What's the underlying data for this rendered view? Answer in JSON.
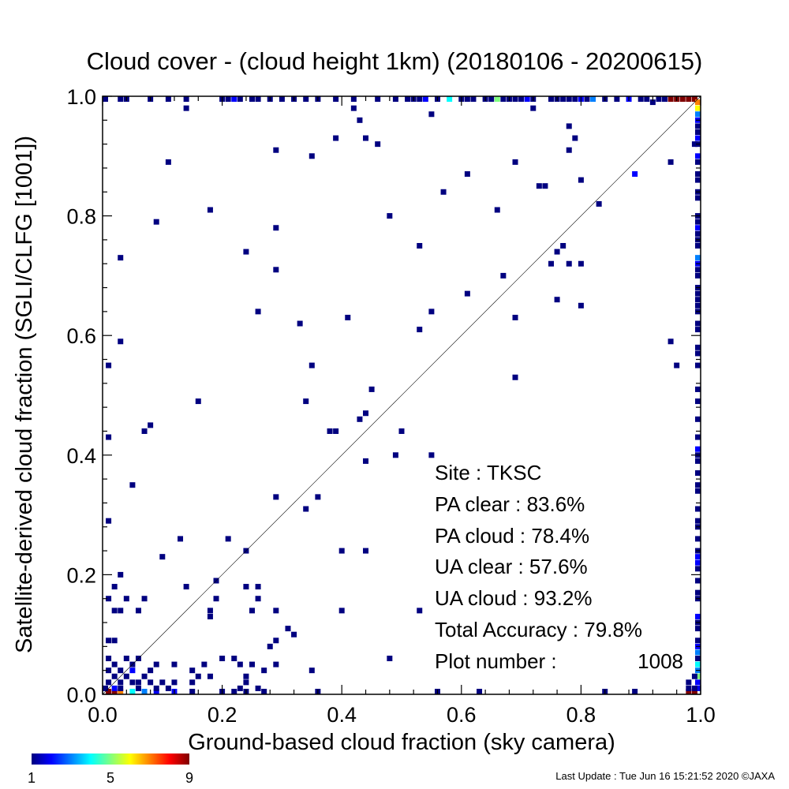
{
  "chart_data": {
    "type": "heatmap",
    "title": "Cloud cover - (cloud height 1km)  (20180106 - 20200615)",
    "xlabel": "Ground-based cloud fraction (sky camera)",
    "ylabel": "Satellite-derived cloud fraction (SGLI/CLFG [1001])",
    "xlim": [
      0.0,
      1.0
    ],
    "ylim": [
      0.0,
      1.0
    ],
    "x_ticks": [
      "0.0",
      "0.2",
      "0.4",
      "0.6",
      "0.8",
      "1.0"
    ],
    "y_ticks": [
      "0.0",
      "0.2",
      "0.4",
      "0.6",
      "0.8",
      "1.0"
    ],
    "reference_line": "y = x",
    "bin_size": 0.01,
    "colorbar": {
      "min": 1,
      "max": 9,
      "tick_labels": [
        "1",
        "5",
        "9"
      ],
      "colors": [
        "#000080",
        "#0000ff",
        "#0080ff",
        "#00ffff",
        "#80ff80",
        "#ffff00",
        "#ff8000",
        "#ff0000",
        "#800000"
      ]
    },
    "cells": [
      [
        0.01,
        0.0,
        9
      ],
      [
        0.02,
        0.0,
        9
      ],
      [
        0.03,
        0.0,
        7
      ],
      [
        0.05,
        0.0,
        4
      ],
      [
        0.07,
        0.0,
        3
      ],
      [
        0.09,
        0.0,
        2
      ],
      [
        0.12,
        0.0,
        2
      ],
      [
        0.15,
        0.0,
        1
      ],
      [
        0.2,
        0.0,
        1
      ],
      [
        0.22,
        0.0,
        1
      ],
      [
        0.24,
        0.0,
        1
      ],
      [
        0.27,
        0.0,
        1
      ],
      [
        0.36,
        0.0,
        1
      ],
      [
        0.56,
        0.0,
        1
      ],
      [
        0.63,
        0.0,
        1
      ],
      [
        0.84,
        0.0,
        1
      ],
      [
        0.89,
        0.0,
        1
      ],
      [
        0.98,
        0.0,
        9
      ],
      [
        0.99,
        0.0,
        9
      ],
      [
        0.0,
        0.01,
        1
      ],
      [
        0.02,
        0.01,
        2
      ],
      [
        0.03,
        0.01,
        1
      ],
      [
        0.06,
        0.01,
        1
      ],
      [
        0.09,
        0.01,
        1
      ],
      [
        0.11,
        0.01,
        1
      ],
      [
        0.23,
        0.01,
        1
      ],
      [
        0.26,
        0.01,
        1
      ],
      [
        0.01,
        0.02,
        1
      ],
      [
        0.03,
        0.02,
        1
      ],
      [
        0.05,
        0.02,
        1
      ],
      [
        0.06,
        0.02,
        1
      ],
      [
        0.08,
        0.02,
        1
      ],
      [
        0.1,
        0.02,
        1
      ],
      [
        0.12,
        0.02,
        1
      ],
      [
        0.15,
        0.02,
        1
      ],
      [
        0.24,
        0.02,
        1
      ],
      [
        0.02,
        0.03,
        1
      ],
      [
        0.04,
        0.03,
        1
      ],
      [
        0.07,
        0.03,
        1
      ],
      [
        0.16,
        0.03,
        1
      ],
      [
        0.18,
        0.03,
        1
      ],
      [
        0.24,
        0.03,
        1
      ],
      [
        0.01,
        0.04,
        1
      ],
      [
        0.03,
        0.04,
        1
      ],
      [
        0.05,
        0.04,
        2
      ],
      [
        0.08,
        0.04,
        1
      ],
      [
        0.15,
        0.04,
        1
      ],
      [
        0.27,
        0.04,
        1
      ],
      [
        0.35,
        0.04,
        1
      ],
      [
        0.02,
        0.05,
        1
      ],
      [
        0.05,
        0.05,
        1
      ],
      [
        0.09,
        0.05,
        1
      ],
      [
        0.12,
        0.05,
        1
      ],
      [
        0.17,
        0.05,
        1
      ],
      [
        0.23,
        0.05,
        1
      ],
      [
        0.25,
        0.05,
        1
      ],
      [
        0.29,
        0.05,
        1
      ],
      [
        0.01,
        0.06,
        1
      ],
      [
        0.04,
        0.06,
        1
      ],
      [
        0.06,
        0.06,
        1
      ],
      [
        0.2,
        0.06,
        1
      ],
      [
        0.22,
        0.06,
        1
      ],
      [
        0.48,
        0.06,
        1
      ],
      [
        0.28,
        0.08,
        1
      ],
      [
        0.01,
        0.09,
        1
      ],
      [
        0.02,
        0.09,
        1
      ],
      [
        0.29,
        0.09,
        1
      ],
      [
        0.32,
        0.1,
        1
      ],
      [
        0.31,
        0.11,
        1
      ],
      [
        0.02,
        0.14,
        1
      ],
      [
        0.03,
        0.14,
        1
      ],
      [
        0.06,
        0.14,
        1
      ],
      [
        0.18,
        0.13,
        1
      ],
      [
        0.18,
        0.14,
        1
      ],
      [
        0.25,
        0.14,
        1
      ],
      [
        0.29,
        0.14,
        1
      ],
      [
        0.4,
        0.14,
        1
      ],
      [
        0.53,
        0.14,
        1
      ],
      [
        0.01,
        0.16,
        1
      ],
      [
        0.04,
        0.16,
        1
      ],
      [
        0.07,
        0.16,
        1
      ],
      [
        0.19,
        0.16,
        1
      ],
      [
        0.26,
        0.16,
        1
      ],
      [
        0.02,
        0.18,
        1
      ],
      [
        0.14,
        0.18,
        1
      ],
      [
        0.24,
        0.18,
        1
      ],
      [
        0.26,
        0.18,
        1
      ],
      [
        0.03,
        0.2,
        1
      ],
      [
        0.19,
        0.19,
        1
      ],
      [
        0.1,
        0.23,
        1
      ],
      [
        0.24,
        0.24,
        1
      ],
      [
        0.4,
        0.24,
        1
      ],
      [
        0.44,
        0.24,
        1
      ],
      [
        0.13,
        0.26,
        1
      ],
      [
        0.21,
        0.26,
        1
      ],
      [
        0.01,
        0.29,
        1
      ],
      [
        0.34,
        0.31,
        1
      ],
      [
        0.29,
        0.33,
        1
      ],
      [
        0.36,
        0.33,
        1
      ],
      [
        0.05,
        0.35,
        1
      ],
      [
        0.55,
        0.4,
        1
      ],
      [
        0.49,
        0.4,
        1
      ],
      [
        0.44,
        0.39,
        1
      ],
      [
        0.01,
        0.43,
        1
      ],
      [
        0.07,
        0.44,
        1
      ],
      [
        0.38,
        0.44,
        1
      ],
      [
        0.39,
        0.44,
        1
      ],
      [
        0.5,
        0.44,
        1
      ],
      [
        0.08,
        0.45,
        1
      ],
      [
        0.43,
        0.46,
        1
      ],
      [
        0.44,
        0.47,
        1
      ],
      [
        0.16,
        0.49,
        1
      ],
      [
        0.34,
        0.49,
        1
      ],
      [
        0.45,
        0.51,
        1
      ],
      [
        0.01,
        0.55,
        1
      ],
      [
        0.35,
        0.55,
        1
      ],
      [
        0.69,
        0.53,
        1
      ],
      [
        0.96,
        0.55,
        1
      ],
      [
        0.03,
        0.59,
        1
      ],
      [
        0.53,
        0.61,
        1
      ],
      [
        0.33,
        0.62,
        1
      ],
      [
        0.41,
        0.63,
        1
      ],
      [
        0.55,
        0.64,
        1
      ],
      [
        0.26,
        0.64,
        1
      ],
      [
        0.69,
        0.63,
        1
      ],
      [
        0.95,
        0.59,
        1
      ],
      [
        0.61,
        0.67,
        1
      ],
      [
        0.76,
        0.66,
        1
      ],
      [
        0.8,
        0.65,
        1
      ],
      [
        0.67,
        0.7,
        1
      ],
      [
        0.29,
        0.71,
        1
      ],
      [
        0.75,
        0.72,
        1
      ],
      [
        0.78,
        0.72,
        1
      ],
      [
        0.8,
        0.72,
        1
      ],
      [
        0.03,
        0.73,
        1
      ],
      [
        0.24,
        0.74,
        1
      ],
      [
        0.76,
        0.74,
        1
      ],
      [
        0.77,
        0.75,
        1
      ],
      [
        0.53,
        0.75,
        1
      ],
      [
        0.29,
        0.78,
        1
      ],
      [
        0.09,
        0.79,
        1
      ],
      [
        0.48,
        0.8,
        1
      ],
      [
        0.18,
        0.81,
        1
      ],
      [
        0.66,
        0.81,
        1
      ],
      [
        0.83,
        0.82,
        1
      ],
      [
        0.57,
        0.84,
        1
      ],
      [
        0.73,
        0.85,
        1
      ],
      [
        0.74,
        0.85,
        1
      ],
      [
        0.8,
        0.86,
        1
      ],
      [
        0.61,
        0.87,
        1
      ],
      [
        0.89,
        0.87,
        2
      ],
      [
        0.11,
        0.89,
        1
      ],
      [
        0.69,
        0.89,
        1
      ],
      [
        0.95,
        0.89,
        1
      ],
      [
        0.35,
        0.9,
        1
      ],
      [
        0.29,
        0.91,
        1
      ],
      [
        0.78,
        0.91,
        1
      ],
      [
        0.39,
        0.93,
        1
      ],
      [
        0.44,
        0.93,
        1
      ],
      [
        0.46,
        0.92,
        1
      ],
      [
        0.79,
        0.93,
        1
      ],
      [
        0.78,
        0.95,
        1
      ],
      [
        0.43,
        0.96,
        1
      ],
      [
        0.55,
        0.97,
        1
      ],
      [
        0.14,
        0.98,
        1
      ],
      [
        0.42,
        0.98,
        1
      ],
      [
        0.72,
        0.98,
        1
      ],
      [
        0.92,
        0.99,
        1
      ],
      [
        0.0,
        1.0,
        1
      ],
      [
        0.03,
        1.0,
        1
      ],
      [
        0.04,
        1.0,
        1
      ],
      [
        0.08,
        1.0,
        1
      ],
      [
        0.11,
        1.0,
        1
      ],
      [
        0.14,
        1.0,
        1
      ],
      [
        0.2,
        1.0,
        1
      ],
      [
        0.21,
        1.0,
        1
      ],
      [
        0.22,
        1.0,
        2
      ],
      [
        0.23,
        1.0,
        1
      ],
      [
        0.25,
        1.0,
        1
      ],
      [
        0.26,
        1.0,
        1
      ],
      [
        0.28,
        1.0,
        1
      ],
      [
        0.3,
        1.0,
        1
      ],
      [
        0.32,
        1.0,
        1
      ],
      [
        0.34,
        1.0,
        1
      ],
      [
        0.36,
        1.0,
        1
      ],
      [
        0.39,
        1.0,
        1
      ],
      [
        0.42,
        1.0,
        1
      ],
      [
        0.46,
        1.0,
        1
      ],
      [
        0.49,
        1.0,
        1
      ],
      [
        0.51,
        1.0,
        1
      ],
      [
        0.52,
        1.0,
        1
      ],
      [
        0.53,
        1.0,
        1
      ],
      [
        0.54,
        1.0,
        2
      ],
      [
        0.56,
        1.0,
        1
      ],
      [
        0.58,
        1.0,
        4
      ],
      [
        0.6,
        1.0,
        1
      ],
      [
        0.61,
        1.0,
        1
      ],
      [
        0.62,
        1.0,
        1
      ],
      [
        0.64,
        1.0,
        1
      ],
      [
        0.65,
        1.0,
        1
      ],
      [
        0.66,
        1.0,
        5
      ],
      [
        0.67,
        1.0,
        1
      ],
      [
        0.68,
        1.0,
        1
      ],
      [
        0.69,
        1.0,
        1
      ],
      [
        0.7,
        1.0,
        1
      ],
      [
        0.71,
        1.0,
        2
      ],
      [
        0.72,
        1.0,
        1
      ],
      [
        0.75,
        1.0,
        1
      ],
      [
        0.76,
        1.0,
        1
      ],
      [
        0.77,
        1.0,
        1
      ],
      [
        0.78,
        1.0,
        1
      ],
      [
        0.79,
        1.0,
        1
      ],
      [
        0.8,
        1.0,
        2
      ],
      [
        0.81,
        1.0,
        1
      ],
      [
        0.82,
        1.0,
        3
      ],
      [
        0.84,
        1.0,
        1
      ],
      [
        0.86,
        1.0,
        1
      ],
      [
        0.88,
        1.0,
        2
      ],
      [
        0.9,
        1.0,
        1
      ],
      [
        0.91,
        1.0,
        1
      ],
      [
        0.93,
        1.0,
        1
      ],
      [
        0.94,
        1.0,
        1
      ],
      [
        0.95,
        1.0,
        9
      ],
      [
        0.96,
        1.0,
        9
      ],
      [
        0.97,
        1.0,
        9
      ],
      [
        0.98,
        1.0,
        9
      ],
      [
        0.99,
        1.0,
        9
      ],
      [
        1.0,
        0.99,
        7
      ],
      [
        1.0,
        0.98,
        6
      ],
      [
        1.0,
        0.97,
        3
      ],
      [
        1.0,
        0.96,
        2
      ],
      [
        1.0,
        0.95,
        1
      ],
      [
        1.0,
        0.94,
        1
      ],
      [
        1.0,
        0.93,
        2
      ],
      [
        1.0,
        0.92,
        1
      ],
      [
        0.99,
        0.92,
        1
      ],
      [
        1.0,
        0.9,
        2
      ],
      [
        1.0,
        0.89,
        1
      ],
      [
        1.0,
        0.87,
        1
      ],
      [
        1.0,
        0.86,
        1
      ],
      [
        1.0,
        0.84,
        1
      ],
      [
        1.0,
        0.83,
        1
      ],
      [
        1.0,
        0.8,
        1
      ],
      [
        1.0,
        0.79,
        1
      ],
      [
        1.0,
        0.78,
        2
      ],
      [
        1.0,
        0.77,
        1
      ],
      [
        1.0,
        0.76,
        1
      ],
      [
        1.0,
        0.75,
        1
      ],
      [
        1.0,
        0.73,
        3
      ],
      [
        1.0,
        0.72,
        2
      ],
      [
        1.0,
        0.71,
        1
      ],
      [
        1.0,
        0.7,
        1
      ],
      [
        1.0,
        0.68,
        1
      ],
      [
        1.0,
        0.67,
        1
      ],
      [
        1.0,
        0.66,
        1
      ],
      [
        1.0,
        0.65,
        1
      ],
      [
        1.0,
        0.64,
        1
      ],
      [
        1.0,
        0.62,
        1
      ],
      [
        1.0,
        0.61,
        1
      ],
      [
        1.0,
        0.58,
        1
      ],
      [
        1.0,
        0.57,
        1
      ],
      [
        1.0,
        0.55,
        1
      ],
      [
        1.0,
        0.51,
        1
      ],
      [
        1.0,
        0.49,
        1
      ],
      [
        1.0,
        0.46,
        1
      ],
      [
        1.0,
        0.43,
        1
      ],
      [
        1.0,
        0.41,
        2
      ],
      [
        1.0,
        0.4,
        1
      ],
      [
        1.0,
        0.39,
        1
      ],
      [
        1.0,
        0.37,
        1
      ],
      [
        1.0,
        0.35,
        1
      ],
      [
        1.0,
        0.34,
        1
      ],
      [
        1.0,
        0.31,
        1
      ],
      [
        1.0,
        0.29,
        1
      ],
      [
        1.0,
        0.28,
        1
      ],
      [
        1.0,
        0.26,
        1
      ],
      [
        1.0,
        0.24,
        1
      ],
      [
        1.0,
        0.23,
        2
      ],
      [
        1.0,
        0.22,
        2
      ],
      [
        1.0,
        0.21,
        1
      ],
      [
        1.0,
        0.19,
        1
      ],
      [
        1.0,
        0.17,
        1
      ],
      [
        1.0,
        0.16,
        1
      ],
      [
        1.0,
        0.13,
        2
      ],
      [
        1.0,
        0.12,
        1
      ],
      [
        1.0,
        0.11,
        1
      ],
      [
        1.0,
        0.09,
        1
      ],
      [
        1.0,
        0.08,
        2
      ],
      [
        1.0,
        0.07,
        3
      ],
      [
        1.0,
        0.06,
        1
      ],
      [
        1.0,
        0.05,
        4
      ],
      [
        1.0,
        0.04,
        3
      ],
      [
        1.0,
        0.03,
        5
      ],
      [
        1.0,
        0.02,
        2
      ],
      [
        1.0,
        0.01,
        2
      ],
      [
        0.99,
        0.01,
        1
      ],
      [
        0.98,
        0.01,
        1
      ],
      [
        0.99,
        0.03,
        1
      ],
      [
        0.98,
        0.02,
        1
      ]
    ]
  },
  "stats": {
    "site": "Site : TKSC",
    "pa_clear": "PA clear :  83.6%",
    "pa_cloud": "PA cloud :  78.4%",
    "ua_clear": "UA clear :  57.6%",
    "ua_cloud": "UA cloud :  93.2%",
    "total_accuracy": "Total Accuracy :  79.8%",
    "plot_number_label": "Plot number :",
    "plot_number_value": "1008"
  },
  "footer": "Last Update : Tue Jun 16 15:21:52 2020  ©JAXA"
}
